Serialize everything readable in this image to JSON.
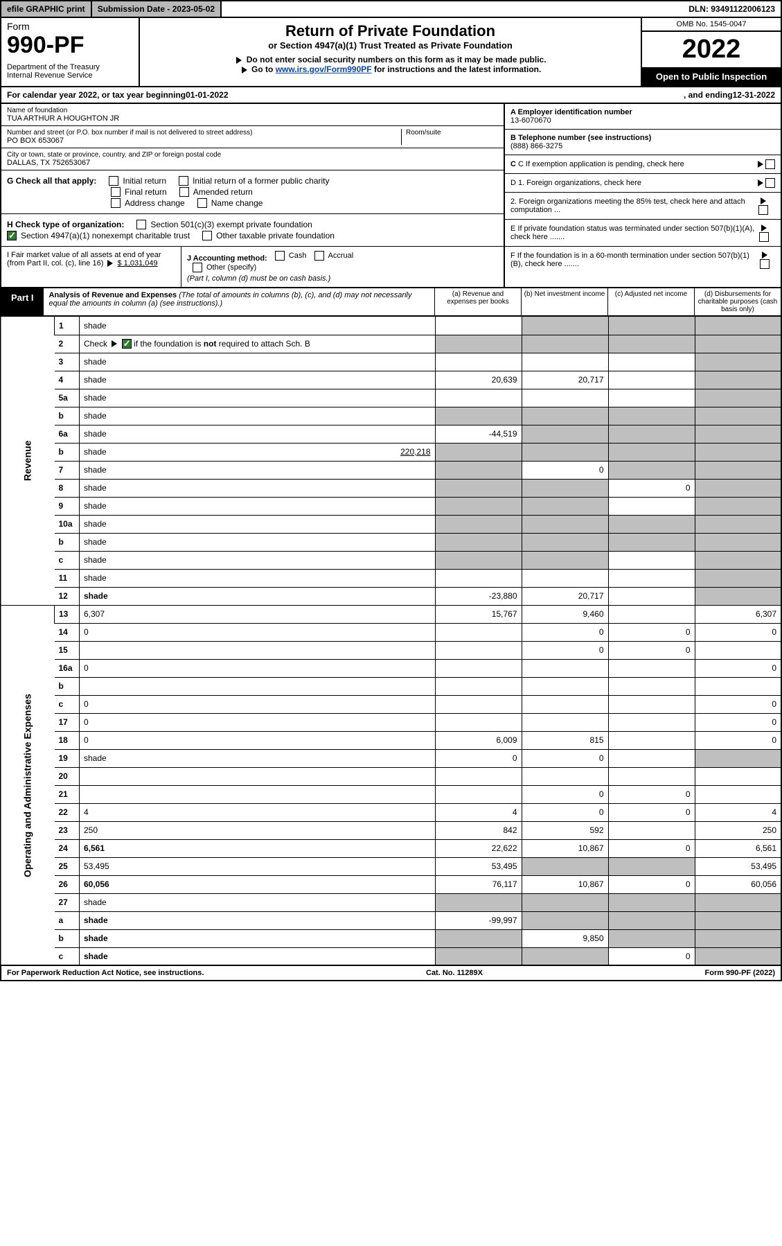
{
  "topbar": {
    "efile": "efile GRAPHIC print",
    "subm_label": "Submission Date - ",
    "subm_date": "2023-05-02",
    "dln_label": "DLN: ",
    "dln": "93491122006123"
  },
  "header": {
    "form_word": "Form",
    "form_num": "990-PF",
    "dept": "Department of the Treasury\nInternal Revenue Service",
    "title": "Return of Private Foundation",
    "subtitle": "or Section 4947(a)(1) Trust Treated as Private Foundation",
    "note1": "Do not enter social security numbers on this form as it may be made public.",
    "note2_pre": "Go to ",
    "note2_link": "www.irs.gov/Form990PF",
    "note2_post": " for instructions and the latest information.",
    "omb": "OMB No. 1545-0047",
    "year": "2022",
    "open": "Open to Public Inspection"
  },
  "calrow": {
    "pre": "For calendar year 2022, or tax year beginning ",
    "begin": "01-01-2022",
    "mid": ", and ending ",
    "end": "12-31-2022"
  },
  "info": {
    "name_lbl": "Name of foundation",
    "name": "TUA ARTHUR A HOUGHTON JR",
    "addr_lbl": "Number and street (or P.O. box number if mail is not delivered to street address)",
    "addr": "PO BOX 653067",
    "room_lbl": "Room/suite",
    "city_lbl": "City or town, state or province, country, and ZIP or foreign postal code",
    "city": "DALLAS, TX  752653067",
    "a_lbl": "A Employer identification number",
    "a_val": "13-6070670",
    "b_lbl": "B Telephone number (see instructions)",
    "b_val": "(888) 866-3275",
    "c_lbl": "C If exemption application is pending, check here"
  },
  "secG": {
    "lead": "G Check all that apply:",
    "opts": [
      "Initial return",
      "Final return",
      "Address change",
      "Initial return of a former public charity",
      "Amended return",
      "Name change"
    ]
  },
  "secD": {
    "d1": "D 1. Foreign organizations, check here",
    "d2": "2. Foreign organizations meeting the 85% test, check here and attach computation ...",
    "e": "E  If private foundation status was terminated under section 507(b)(1)(A), check here .......",
    "f": "F  If the foundation is in a 60-month termination under section 507(b)(1)(B), check here ......."
  },
  "secH": {
    "h_lead": "H Check type of organization:",
    "h_opt1": "Section 501(c)(3) exempt private foundation",
    "h_opt2": "Section 4947(a)(1) nonexempt charitable trust",
    "h_opt3": "Other taxable private foundation",
    "i_lead": "I Fair market value of all assets at end of year (from Part II, col. (c), line 16) ",
    "i_val": "$  1,031,049",
    "j_lead": "J Accounting method:",
    "j_cash": "Cash",
    "j_accr": "Accrual",
    "j_other": "Other (specify)",
    "j_note": "(Part I, column (d) must be on cash basis.)"
  },
  "part1": {
    "tab": "Part I",
    "title": "Analysis of Revenue and Expenses",
    "title_note": " (The total of amounts in columns (b), (c), and (d) may not necessarily equal the amounts in column (a) (see instructions).)",
    "col_a": "(a)  Revenue and expenses per books",
    "col_b": "(b)  Net investment income",
    "col_c": "(c)  Adjusted net income",
    "col_d": "(d)  Disbursements for charitable purposes (cash basis only)",
    "rev_label": "Revenue",
    "exp_label": "Operating and Administrative Expenses"
  },
  "rows": [
    {
      "n": "1",
      "d": "shade",
      "a": "",
      "b": "shade",
      "c": "shade"
    },
    {
      "n": "2",
      "d": "shade",
      "a": "shade",
      "b": "shade",
      "c": "shade",
      "checked": true
    },
    {
      "n": "3",
      "d": "shade",
      "a": "",
      "b": "",
      "c": ""
    },
    {
      "n": "4",
      "d": "shade",
      "a": "20,639",
      "b": "20,717",
      "c": ""
    },
    {
      "n": "5a",
      "d": "shade",
      "a": "",
      "b": "",
      "c": ""
    },
    {
      "n": "b",
      "d": "shade",
      "a": "shade",
      "b": "shade",
      "c": "shade"
    },
    {
      "n": "6a",
      "d": "shade",
      "a": "-44,519",
      "b": "shade",
      "c": "shade"
    },
    {
      "n": "b",
      "d": "shade",
      "extra": "220,218",
      "a": "shade",
      "b": "shade",
      "c": "shade"
    },
    {
      "n": "7",
      "d": "shade",
      "a": "shade",
      "b": "0",
      "c": "shade"
    },
    {
      "n": "8",
      "d": "shade",
      "a": "shade",
      "b": "shade",
      "c": "0"
    },
    {
      "n": "9",
      "d": "shade",
      "a": "shade",
      "b": "shade",
      "c": ""
    },
    {
      "n": "10a",
      "d": "shade",
      "a": "shade",
      "b": "shade",
      "c": "shade"
    },
    {
      "n": "b",
      "d": "shade",
      "a": "shade",
      "b": "shade",
      "c": "shade"
    },
    {
      "n": "c",
      "d": "shade",
      "a": "shade",
      "b": "shade",
      "c": ""
    },
    {
      "n": "11",
      "d": "shade",
      "a": "",
      "b": "",
      "c": ""
    },
    {
      "n": "12",
      "d": "shade",
      "a": "-23,880",
      "b": "20,717",
      "c": "",
      "bold": true
    }
  ],
  "exp_rows": [
    {
      "n": "13",
      "d": "6,307",
      "a": "15,767",
      "b": "9,460",
      "c": ""
    },
    {
      "n": "14",
      "d": "0",
      "a": "",
      "b": "0",
      "c": "0"
    },
    {
      "n": "15",
      "d": "",
      "a": "",
      "b": "0",
      "c": "0"
    },
    {
      "n": "16a",
      "d": "0",
      "a": "",
      "b": "",
      "c": ""
    },
    {
      "n": "b",
      "d": "",
      "a": "",
      "b": "",
      "c": ""
    },
    {
      "n": "c",
      "d": "0",
      "a": "",
      "b": "",
      "c": ""
    },
    {
      "n": "17",
      "d": "0",
      "a": "",
      "b": "",
      "c": ""
    },
    {
      "n": "18",
      "d": "0",
      "a": "6,009",
      "b": "815",
      "c": ""
    },
    {
      "n": "19",
      "d": "shade",
      "a": "0",
      "b": "0",
      "c": ""
    },
    {
      "n": "20",
      "d": "",
      "a": "",
      "b": "",
      "c": ""
    },
    {
      "n": "21",
      "d": "",
      "a": "",
      "b": "0",
      "c": "0"
    },
    {
      "n": "22",
      "d": "4",
      "a": "4",
      "b": "0",
      "c": "0"
    },
    {
      "n": "23",
      "d": "250",
      "a": "842",
      "b": "592",
      "c": ""
    },
    {
      "n": "24",
      "d": "6,561",
      "a": "22,622",
      "b": "10,867",
      "c": "0",
      "bold": true
    },
    {
      "n": "25",
      "d": "53,495",
      "a": "53,495",
      "b": "shade",
      "c": "shade"
    },
    {
      "n": "26",
      "d": "60,056",
      "a": "76,117",
      "b": "10,867",
      "c": "0",
      "bold": true
    },
    {
      "n": "27",
      "d": "shade",
      "a": "shade",
      "b": "shade",
      "c": "shade"
    },
    {
      "n": "a",
      "d": "shade",
      "a": "-99,997",
      "b": "shade",
      "c": "shade",
      "bold": true
    },
    {
      "n": "b",
      "d": "shade",
      "a": "shade",
      "b": "9,850",
      "c": "shade",
      "bold": true
    },
    {
      "n": "c",
      "d": "shade",
      "a": "shade",
      "b": "shade",
      "c": "0",
      "bold": true
    }
  ],
  "footer": {
    "left": "For Paperwork Reduction Act Notice, see instructions.",
    "mid": "Cat. No. 11289X",
    "right": "Form 990-PF (2022)"
  }
}
